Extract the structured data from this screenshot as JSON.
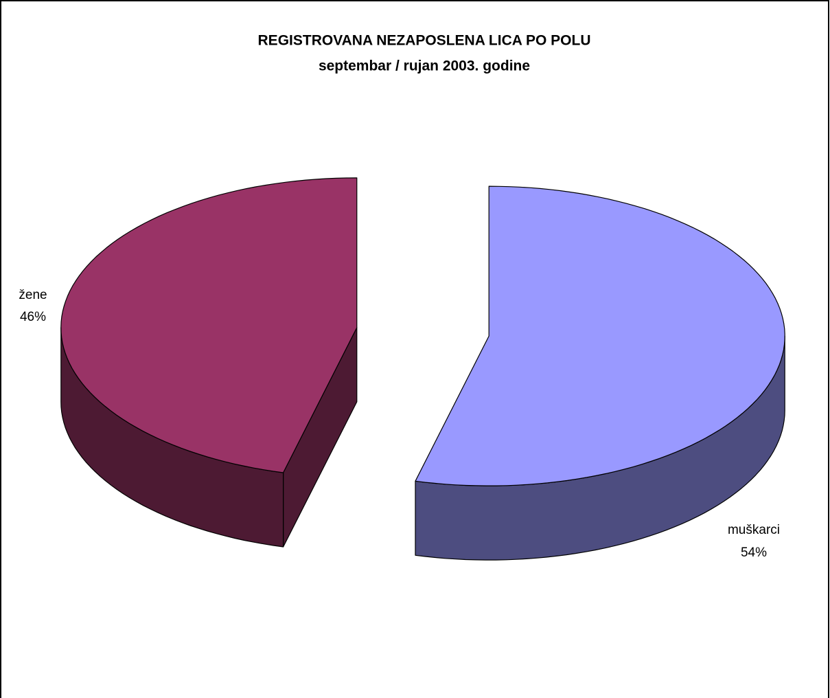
{
  "chart_data": {
    "type": "pie3d",
    "title": "REGISTROVANA NEZAPOSLENA LICA PO POLU",
    "subtitle": "septembar / rujan 2003. godine",
    "categories": [
      "muškarci",
      "žene"
    ],
    "values": [
      54,
      46
    ],
    "value_labels": [
      "54%",
      "46%"
    ],
    "colors": [
      "#9999FF",
      "#993366"
    ],
    "exploded": true
  }
}
